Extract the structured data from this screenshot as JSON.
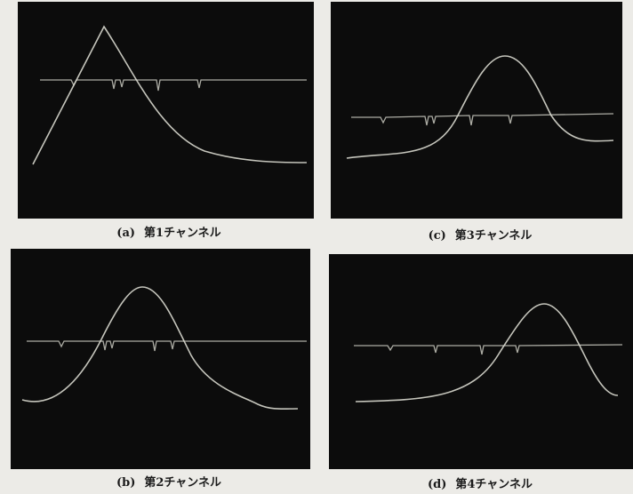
{
  "panels": [
    {
      "label": "(a)",
      "title": "第1チャンネル"
    },
    {
      "label": "(c)",
      "title": "第3チャンネル"
    },
    {
      "label": "(b)",
      "title": "第2チャンネル"
    },
    {
      "label": "(d)",
      "title": "第4チャンネル"
    }
  ]
}
